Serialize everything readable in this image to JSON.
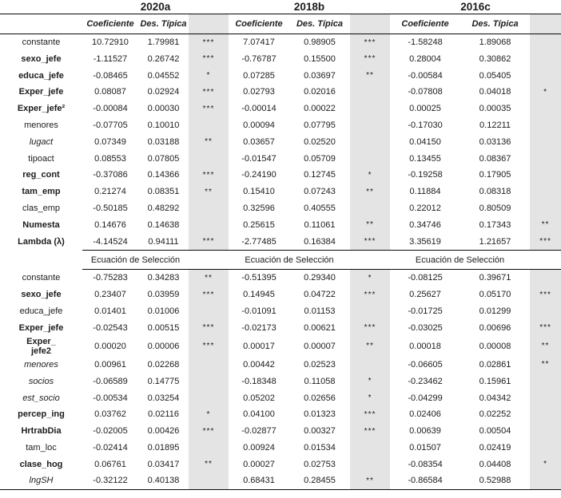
{
  "table": {
    "year_headers": [
      "2020a",
      "2018b",
      "2016c"
    ],
    "col_headers": {
      "coef": "Coeficiente",
      "des": "Des. Típica"
    },
    "section_label": "Ecuación de Selección",
    "colors": {
      "band": "#e4e4e4",
      "text": "#1c1c1c",
      "rule": "#0a0a0a"
    },
    "significance_symbols": [
      "*",
      "**",
      "***"
    ],
    "upper_rows": [
      {
        "label": "constante",
        "style": "regular",
        "cells": [
          [
            "10.72910",
            "1.79981",
            "***"
          ],
          [
            "7.07417",
            "0.98905",
            "***"
          ],
          [
            "-1.58248",
            "1.89068",
            ""
          ]
        ]
      },
      {
        "label": "sexo_jefe",
        "style": "bold",
        "cells": [
          [
            "-1.11527",
            "0.26742",
            "***"
          ],
          [
            "-0.76787",
            "0.15500",
            "***"
          ],
          [
            "0.28004",
            "0.30862",
            ""
          ]
        ]
      },
      {
        "label": "educa_jefe",
        "style": "bold",
        "cells": [
          [
            "-0.08465",
            "0.04552",
            "*"
          ],
          [
            "0.07285",
            "0.03697",
            "**"
          ],
          [
            "-0.00584",
            "0.05405",
            ""
          ]
        ]
      },
      {
        "label": "Exper_jefe",
        "style": "bold",
        "cells": [
          [
            "0.08087",
            "0.02924",
            "***"
          ],
          [
            "0.02793",
            "0.02016",
            ""
          ],
          [
            "-0.07808",
            "0.04018",
            "*"
          ]
        ]
      },
      {
        "label": "Exper_jefe²",
        "style": "bold",
        "cells": [
          [
            "-0.00084",
            "0.00030",
            "***"
          ],
          [
            "-0.00014",
            "0.00022",
            ""
          ],
          [
            "0.00025",
            "0.00035",
            ""
          ]
        ]
      },
      {
        "label": "menores",
        "style": "regular",
        "cells": [
          [
            "-0.07705",
            "0.10010",
            ""
          ],
          [
            "0.00094",
            "0.07795",
            ""
          ],
          [
            "-0.17030",
            "0.12211",
            ""
          ]
        ]
      },
      {
        "label": "lugact",
        "style": "italic",
        "cells": [
          [
            "0.07349",
            "0.03188",
            "**"
          ],
          [
            "0.03657",
            "0.02520",
            ""
          ],
          [
            "0.04150",
            "0.03136",
            ""
          ]
        ]
      },
      {
        "label": "tipoact",
        "style": "regular",
        "cells": [
          [
            "0.08553",
            "0.07805",
            ""
          ],
          [
            "-0.01547",
            "0.05709",
            ""
          ],
          [
            "0.13455",
            "0.08367",
            ""
          ]
        ]
      },
      {
        "label": "reg_cont",
        "style": "bold",
        "cells": [
          [
            "-0.37086",
            "0.14366",
            "***"
          ],
          [
            "-0.24190",
            "0.12745",
            "*"
          ],
          [
            "-0.19258",
            "0.17905",
            ""
          ]
        ]
      },
      {
        "label": "tam_emp",
        "style": "bold",
        "cells": [
          [
            "0.21274",
            "0.08351",
            "**"
          ],
          [
            "0.15410",
            "0.07243",
            "**"
          ],
          [
            "0.11884",
            "0.08318",
            ""
          ]
        ]
      },
      {
        "label": "clas_emp",
        "style": "regular",
        "cells": [
          [
            "-0.50185",
            "0.48292",
            ""
          ],
          [
            "0.32596",
            "0.40555",
            ""
          ],
          [
            "0.22012",
            "0.80509",
            ""
          ]
        ]
      },
      {
        "label": "Numesta",
        "style": "bold",
        "cells": [
          [
            "0.14676",
            "0.14638",
            ""
          ],
          [
            "0.25615",
            "0.11061",
            "**"
          ],
          [
            "0.34746",
            "0.17343",
            "**"
          ]
        ]
      },
      {
        "label": "Lambda (λ)",
        "style": "bold",
        "cells": [
          [
            "-4.14524",
            "0.94111",
            "***"
          ],
          [
            "-2.77485",
            "0.16384",
            "***"
          ],
          [
            "3.35619",
            "1.21657",
            "***"
          ]
        ]
      }
    ],
    "lower_rows": [
      {
        "label": "constante",
        "style": "regular",
        "cells": [
          [
            "-0.75283",
            "0.34283",
            "**"
          ],
          [
            "-0.51395",
            "0.29340",
            "*"
          ],
          [
            "-0.08125",
            "0.39671",
            ""
          ]
        ]
      },
      {
        "label": "sexo_jefe",
        "style": "bold",
        "cells": [
          [
            "0.23407",
            "0.03959",
            "***"
          ],
          [
            "0.14945",
            "0.04722",
            "***"
          ],
          [
            "0.25627",
            "0.05170",
            "***"
          ]
        ]
      },
      {
        "label": "educa_jefe",
        "style": "regular",
        "cells": [
          [
            "0.01401",
            "0.01006",
            ""
          ],
          [
            "-0.01091",
            "0.01153",
            ""
          ],
          [
            "-0.01725",
            "0.01299",
            ""
          ]
        ]
      },
      {
        "label": "Exper_jefe",
        "style": "bold",
        "cells": [
          [
            "-0.02543",
            "0.00515",
            "***"
          ],
          [
            "-0.02173",
            "0.00621",
            "***"
          ],
          [
            "-0.03025",
            "0.00696",
            "***"
          ]
        ]
      },
      {
        "label": "Exper_\njefe2",
        "style": "bold",
        "cells": [
          [
            "0.00020",
            "0.00006",
            "***"
          ],
          [
            "0.00017",
            "0.00007",
            "**"
          ],
          [
            "0.00018",
            "0.00008",
            "**"
          ]
        ]
      },
      {
        "label": "menores",
        "style": "italic",
        "cells": [
          [
            "0.00961",
            "0.02268",
            ""
          ],
          [
            "0.00442",
            "0.02523",
            ""
          ],
          [
            "-0.06605",
            "0.02861",
            "**"
          ]
        ]
      },
      {
        "label": "socios",
        "style": "italic",
        "cells": [
          [
            "-0.06589",
            "0.14775",
            ""
          ],
          [
            "-0.18348",
            "0.11058",
            "*"
          ],
          [
            "-0.23462",
            "0.15961",
            ""
          ]
        ]
      },
      {
        "label": "est_socio",
        "style": "italic",
        "cells": [
          [
            "-0.00534",
            "0.03254",
            ""
          ],
          [
            "0.05202",
            "0.02656",
            "*"
          ],
          [
            "-0.04299",
            "0.04342",
            ""
          ]
        ]
      },
      {
        "label": "percep_ing",
        "style": "bold",
        "cells": [
          [
            "0.03762",
            "0.02116",
            "*"
          ],
          [
            "0.04100",
            "0.01323",
            "***"
          ],
          [
            "0.02406",
            "0.02252",
            ""
          ]
        ]
      },
      {
        "label": "HrtrabDia",
        "style": "bold",
        "cells": [
          [
            "-0.02005",
            "0.00426",
            "***"
          ],
          [
            "-0.02877",
            "0.00327",
            "***"
          ],
          [
            "0.00639",
            "0.00504",
            ""
          ]
        ]
      },
      {
        "label": "tam_loc",
        "style": "regular",
        "cells": [
          [
            "-0.02414",
            "0.01895",
            ""
          ],
          [
            "0.00924",
            "0.01534",
            ""
          ],
          [
            "0.01507",
            "0.02419",
            ""
          ]
        ]
      },
      {
        "label": "clase_hog",
        "style": "bold",
        "cells": [
          [
            "0.06761",
            "0.03417",
            "**"
          ],
          [
            "0.00027",
            "0.02753",
            ""
          ],
          [
            "-0.08354",
            "0.04408",
            "*"
          ]
        ]
      },
      {
        "label": "lngSH",
        "style": "italic",
        "cells": [
          [
            "-0.32122",
            "0.40138",
            ""
          ],
          [
            "0.68431",
            "0.28455",
            "**"
          ],
          [
            "-0.86584",
            "0.52988",
            ""
          ]
        ]
      }
    ]
  }
}
